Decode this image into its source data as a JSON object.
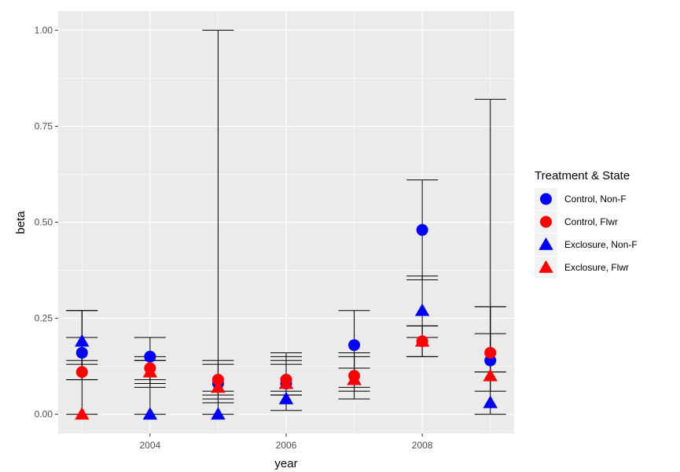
{
  "chart_data": {
    "type": "scatter",
    "xlabel": "year",
    "ylabel": "beta",
    "xlim": [
      2002.65,
      2009.35
    ],
    "ylim": [
      -0.05,
      1.05
    ],
    "x_ticks": [
      2004,
      2006,
      2008
    ],
    "x_tick_labels": [
      "2004",
      "2006",
      "2008"
    ],
    "y_ticks": [
      0,
      0.25,
      0.5,
      0.75,
      1.0
    ],
    "y_tick_labels": [
      "0.00",
      "0.25",
      "0.50",
      "0.75",
      "1.00"
    ],
    "grid": true,
    "legend_placement": "right",
    "legend_title": "Treatment & State",
    "series": [
      {
        "name": "Control, Non-F",
        "color": "#0000ff",
        "shape": "circle",
        "x": [
          2003,
          2004,
          2005,
          2006,
          2007,
          2008,
          2009
        ],
        "y": [
          0.16,
          0.15,
          0.08,
          0.08,
          0.18,
          0.48,
          0.14
        ],
        "lower": [
          0.09,
          0.09,
          0.04,
          0.05,
          0.12,
          0.35,
          0.11
        ],
        "upper": [
          0.27,
          0.2,
          1.0,
          0.15,
          0.27,
          0.61,
          0.21
        ]
      },
      {
        "name": "Control, Flwr",
        "color": "#ff0000",
        "shape": "circle",
        "x": [
          2003,
          2004,
          2005,
          2006,
          2007,
          2008,
          2009
        ],
        "y": [
          0.11,
          0.12,
          0.09,
          0.09,
          0.1,
          0.19,
          0.16
        ],
        "lower": [
          0.09,
          0.08,
          0.05,
          0.06,
          0.07,
          0.15,
          0.11
        ],
        "upper": [
          0.14,
          0.14,
          0.13,
          0.13,
          0.15,
          0.23,
          0.28
        ]
      },
      {
        "name": "Exclosure, Non-F",
        "color": "#0000ff",
        "shape": "triangle",
        "x": [
          2003,
          2004,
          2005,
          2006,
          2007,
          2008,
          2009
        ],
        "y": [
          0.19,
          0.0,
          0.0,
          0.04,
          0.09,
          0.27,
          0.03
        ],
        "lower": [
          0.13,
          0.0,
          0.0,
          0.01,
          0.04,
          0.2,
          0.0
        ],
        "upper": [
          0.27,
          0.15,
          0.06,
          0.16,
          0.16,
          0.36,
          0.82
        ]
      },
      {
        "name": "Exclosure, Flwr",
        "color": "#ff0000",
        "shape": "triangle",
        "x": [
          2003,
          2004,
          2005,
          2006,
          2007,
          2008,
          2009
        ],
        "y": [
          0.0,
          0.11,
          0.07,
          0.08,
          0.09,
          0.19,
          0.1
        ],
        "lower": [
          0.0,
          0.07,
          0.03,
          0.05,
          0.06,
          0.15,
          0.06
        ],
        "upper": [
          0.2,
          0.14,
          0.14,
          0.14,
          0.16,
          0.23,
          0.28
        ]
      }
    ]
  }
}
